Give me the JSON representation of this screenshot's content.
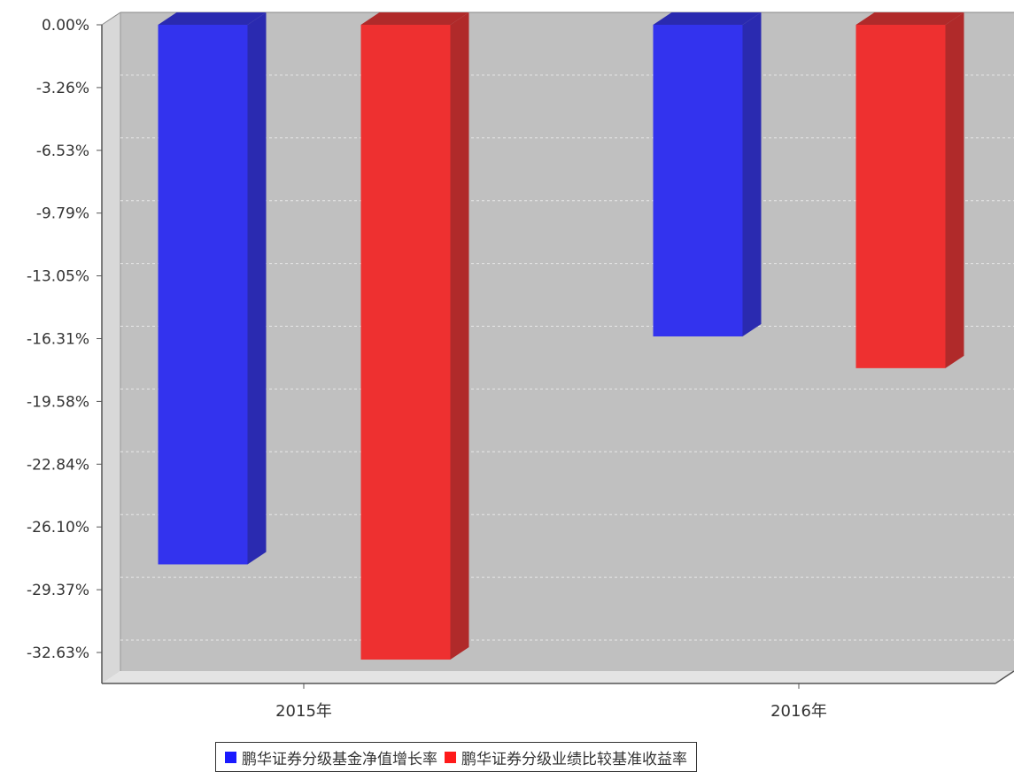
{
  "chart_data": {
    "type": "bar",
    "categories": [
      "2015年",
      "2016年"
    ],
    "series": [
      {
        "name": "鹏华证券分级基金净值增长率",
        "values": [
          -28.05,
          -16.2
        ],
        "color": "#3333ee",
        "side_color": "#2a2ab0"
      },
      {
        "name": "鹏华证券分级业绩比较基准收益率",
        "values": [
          -33.0,
          -17.85
        ],
        "color": "#ee3030",
        "side_color": "#b02a2a"
      }
    ],
    "y_ticks": [
      "0.00%",
      "-3.26%",
      "-6.53%",
      "-9.79%",
      "-13.05%",
      "-16.31%",
      "-19.58%",
      "-22.84%",
      "-26.10%",
      "-29.37%",
      "-32.63%"
    ],
    "ylim": [
      -32.63,
      0
    ],
    "grid": true,
    "legend_position": "bottom",
    "plot_background": "#c0c0c0"
  }
}
